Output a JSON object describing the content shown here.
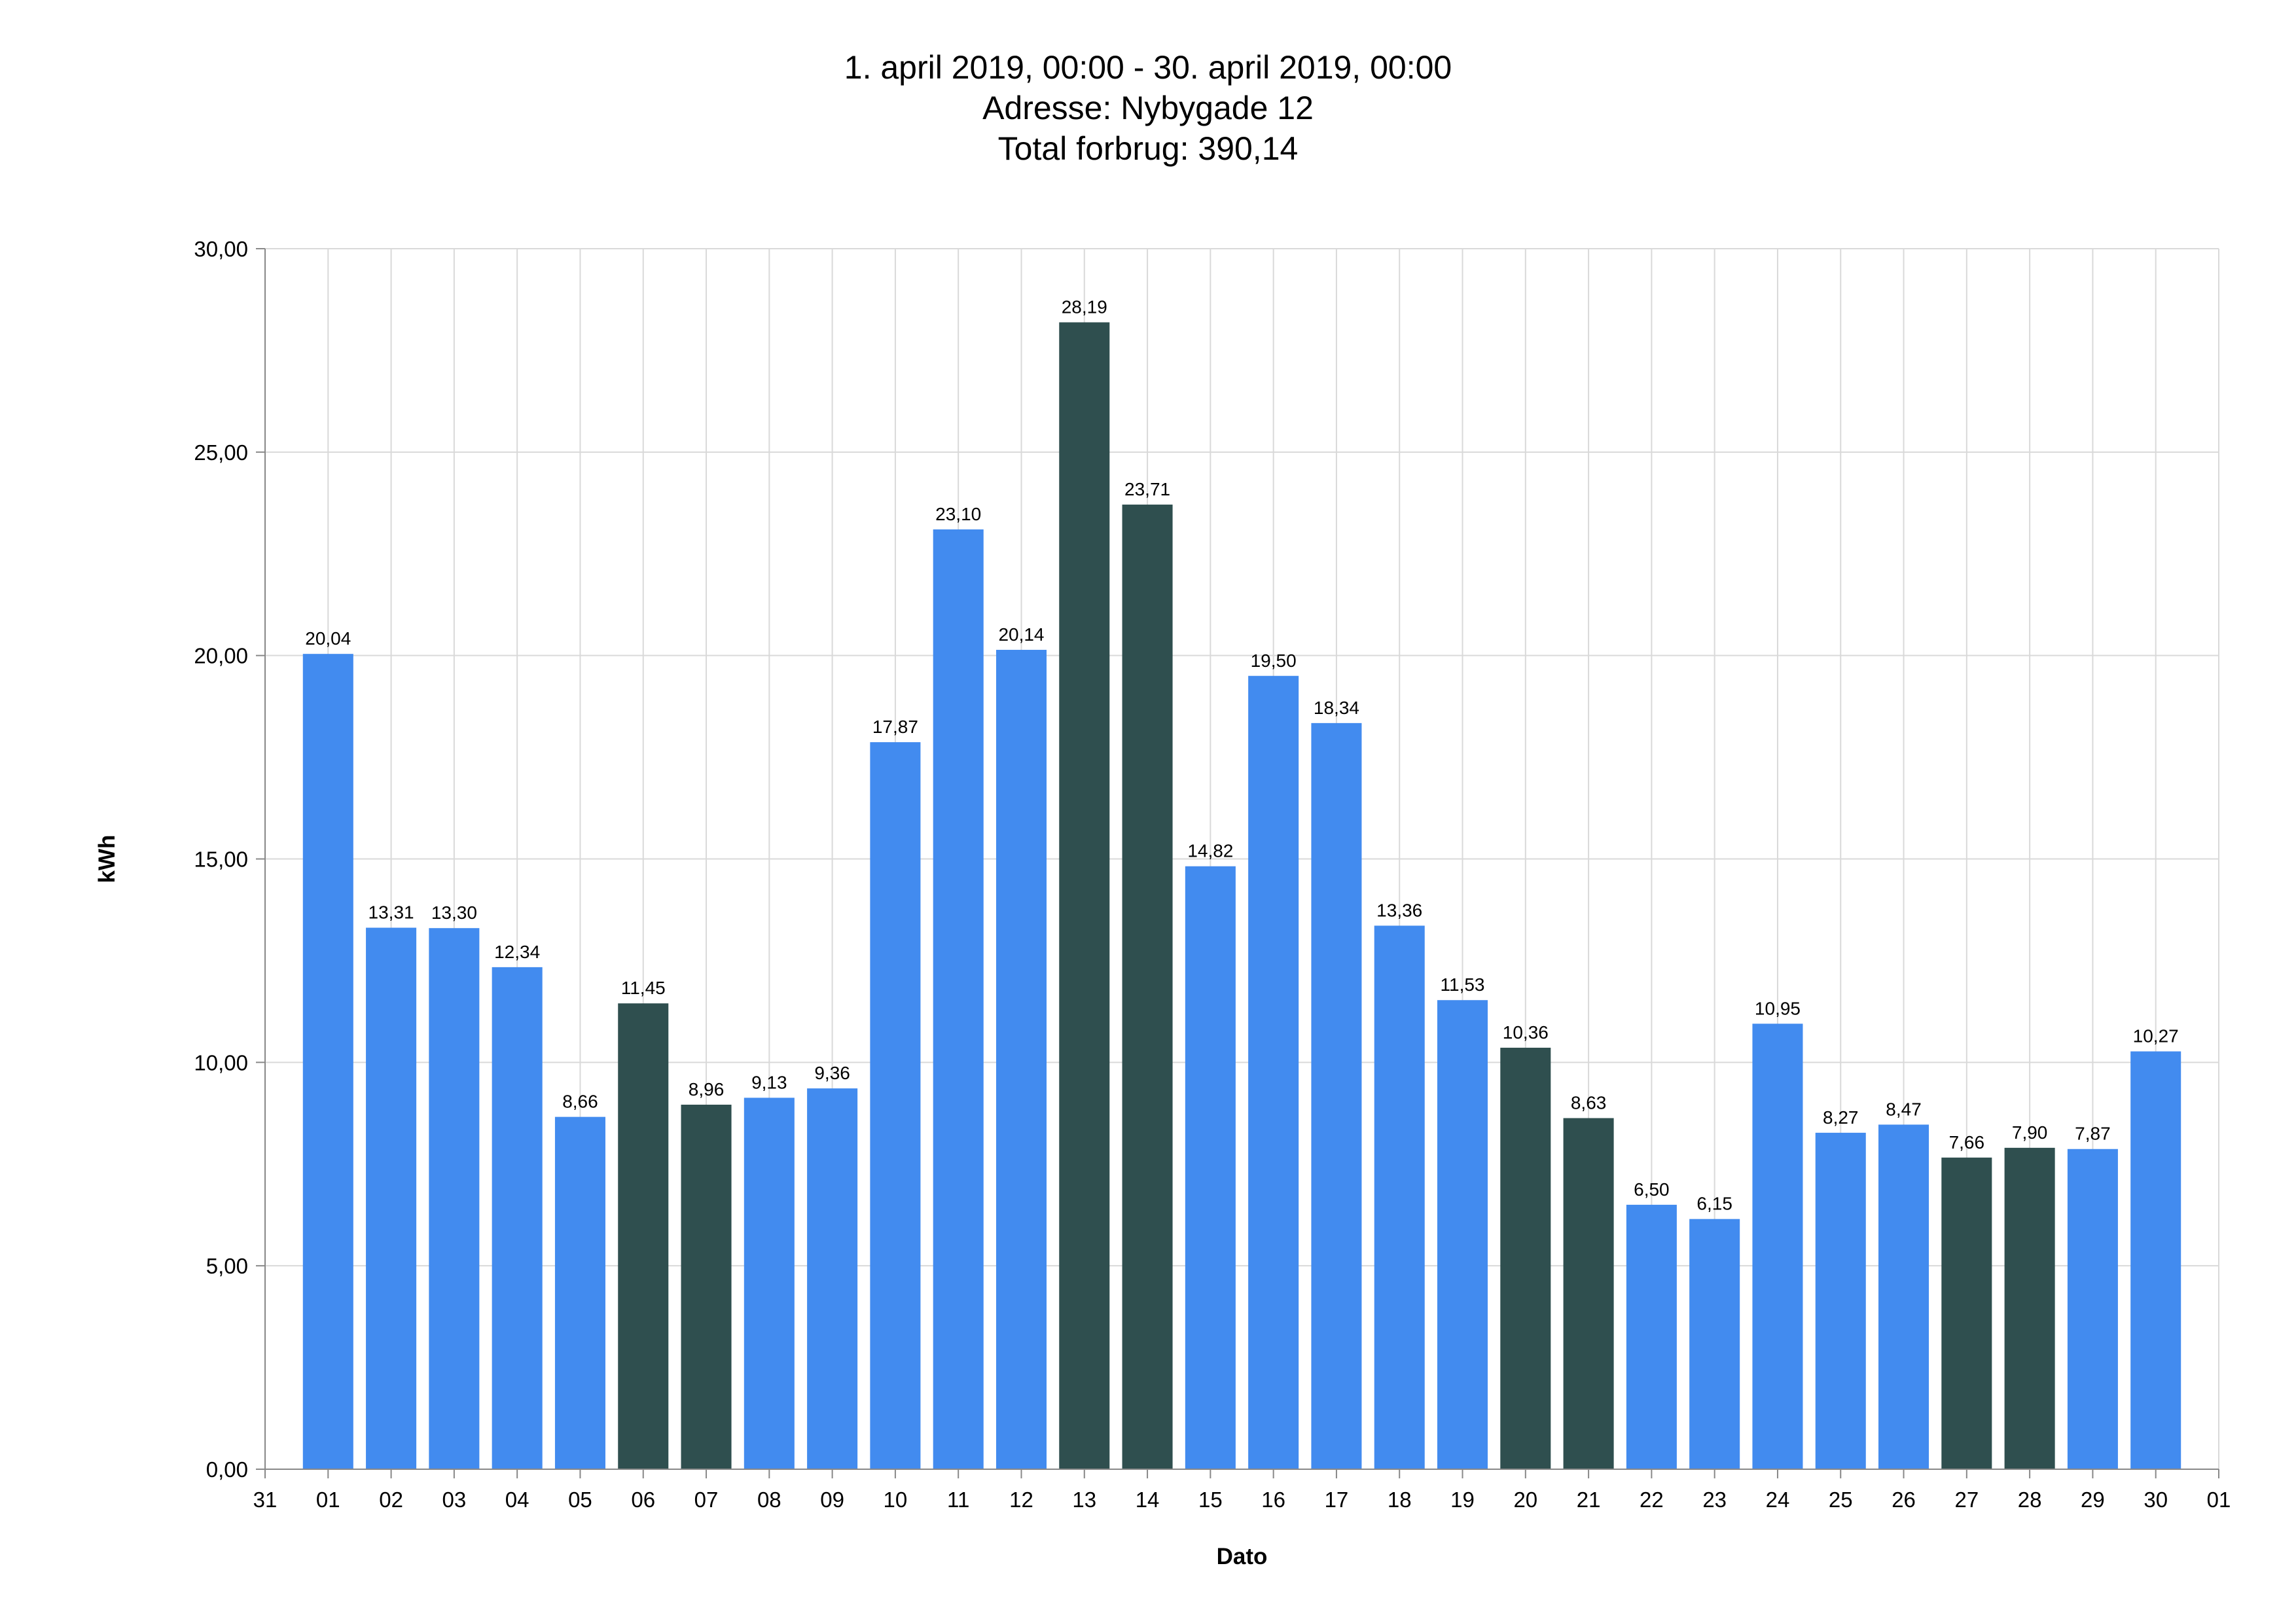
{
  "header": {
    "title": "1. april 2019, 00:00 - 30. april 2019, 00:00",
    "subtitle_address": "Adresse: Nybygade 12",
    "subtitle_total": "Total forbrug: 390,14"
  },
  "colors": {
    "bar_blue": "#428bef",
    "bar_dark": "#2f4f4f",
    "grid": "#d9d9d9",
    "axis": "#888888"
  },
  "chart_data": {
    "type": "bar",
    "title": "1. april 2019, 00:00 - 30. april 2019, 00:00",
    "xlabel": "Dato",
    "ylabel": "kWh",
    "ylim": [
      0,
      30
    ],
    "y_ticks": [
      "0,00",
      "5,00",
      "10,00",
      "15,00",
      "20,00",
      "25,00",
      "30,00"
    ],
    "x_ticks": [
      "31",
      "01",
      "02",
      "03",
      "04",
      "05",
      "06",
      "07",
      "08",
      "09",
      "10",
      "11",
      "12",
      "13",
      "14",
      "15",
      "16",
      "17",
      "18",
      "19",
      "20",
      "21",
      "22",
      "23",
      "24",
      "25",
      "26",
      "27",
      "28",
      "29",
      "30",
      "01"
    ],
    "categories": [
      "01",
      "02",
      "03",
      "04",
      "05",
      "06",
      "07",
      "08",
      "09",
      "10",
      "11",
      "12",
      "13",
      "14",
      "15",
      "16",
      "17",
      "18",
      "19",
      "20",
      "21",
      "22",
      "23",
      "24",
      "25",
      "26",
      "27",
      "28",
      "29",
      "30"
    ],
    "values": [
      20.04,
      13.31,
      13.3,
      12.34,
      8.66,
      11.45,
      8.96,
      9.13,
      9.36,
      17.87,
      23.1,
      20.14,
      28.19,
      23.71,
      14.82,
      19.5,
      18.34,
      13.36,
      11.53,
      10.36,
      8.63,
      6.5,
      6.15,
      10.95,
      8.27,
      8.47,
      7.66,
      7.9,
      7.87,
      10.27
    ],
    "value_labels": [
      "20,04",
      "13,31",
      "13,30",
      "12,34",
      "8,66",
      "11,45",
      "8,96",
      "9,13",
      "9,36",
      "17,87",
      "23,10",
      "20,14",
      "28,19",
      "23,71",
      "14,82",
      "19,50",
      "18,34",
      "13,36",
      "11,53",
      "10,36",
      "8,63",
      "6,50",
      "6,15",
      "10,95",
      "8,27",
      "8,47",
      "7,66",
      "7,90",
      "7,87",
      "10,27"
    ],
    "bar_colors": [
      "#428bef",
      "#428bef",
      "#428bef",
      "#428bef",
      "#428bef",
      "#2f4f4f",
      "#2f4f4f",
      "#428bef",
      "#428bef",
      "#428bef",
      "#428bef",
      "#428bef",
      "#2f4f4f",
      "#2f4f4f",
      "#428bef",
      "#428bef",
      "#428bef",
      "#428bef",
      "#428bef",
      "#2f4f4f",
      "#2f4f4f",
      "#428bef",
      "#428bef",
      "#428bef",
      "#428bef",
      "#428bef",
      "#2f4f4f",
      "#2f4f4f",
      "#428bef",
      "#428bef"
    ],
    "grid": true,
    "legend": "none"
  }
}
